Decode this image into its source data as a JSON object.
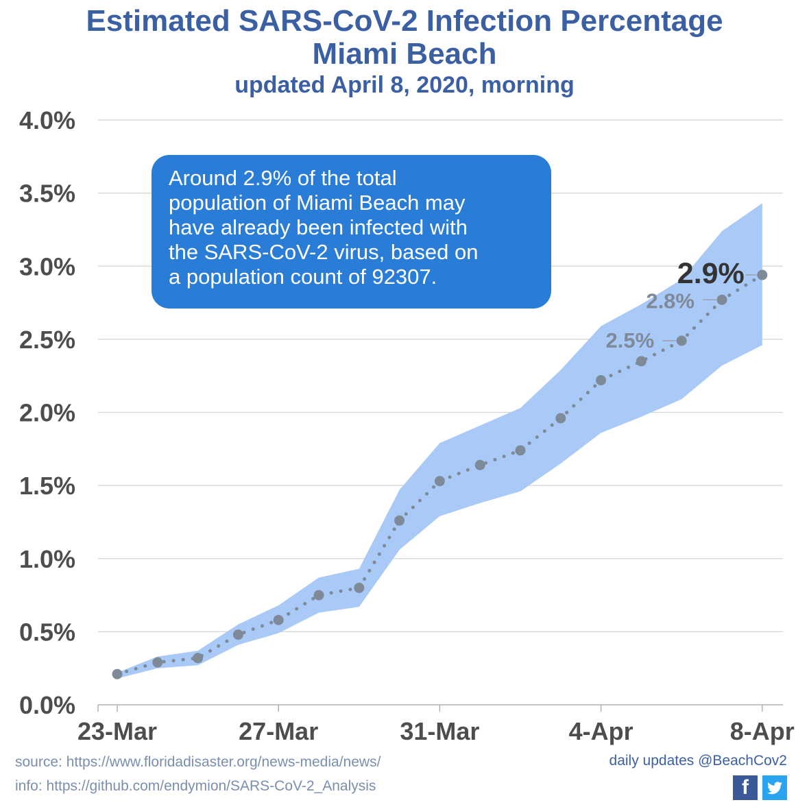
{
  "title_line1": "Estimated SARS-CoV-2 Infection Percentage",
  "title_line2": "Miami Beach",
  "subtitle": "updated April 8, 2020, morning",
  "callout_lines": [
    "Around 2.9% of the total",
    "population of Miami Beach may",
    "have already been infected with",
    "the SARS-CoV-2 virus, based on",
    "a population count of 92307."
  ],
  "source_text": "source: https://www.floridadisaster.org/news-media/news/",
  "info_text": "info: https://github.com/endymion/SARS-CoV-2_Analysis",
  "updates_text": "daily updates @BeachCov2",
  "icons": {
    "facebook": "facebook-icon",
    "twitter": "twitter-icon"
  },
  "colors": {
    "title": "#3b5fa3",
    "band": "#a9c9f7",
    "line": "#7f8a99",
    "callout": "#2a7dd6"
  },
  "chart_data": {
    "type": "line",
    "x": [
      "23-Mar",
      "24-Mar",
      "25-Mar",
      "26-Mar",
      "27-Mar",
      "28-Mar",
      "29-Mar",
      "30-Mar",
      "31-Mar",
      "1-Apr",
      "2-Apr",
      "3-Apr",
      "4-Apr",
      "5-Apr",
      "6-Apr",
      "7-Apr",
      "8-Apr"
    ],
    "x_ticks": [
      "23-Mar",
      "27-Mar",
      "31-Mar",
      "4-Apr",
      "8-Apr"
    ],
    "y_ticks": [
      "0.0%",
      "0.5%",
      "1.0%",
      "1.5%",
      "2.0%",
      "2.5%",
      "3.0%",
      "3.5%",
      "4.0%"
    ],
    "ylim": [
      0,
      4.0
    ],
    "grid": true,
    "series": [
      {
        "values": [
          0.21,
          0.29,
          0.32,
          0.48,
          0.58,
          0.75,
          0.8,
          1.26,
          1.53,
          1.64,
          1.74,
          1.96,
          2.22,
          2.35,
          2.49,
          2.77,
          2.94
        ]
      }
    ],
    "band_upper": [
      0.22,
      0.33,
      0.37,
      0.55,
      0.68,
      0.87,
      0.93,
      1.47,
      1.79,
      1.91,
      2.03,
      2.29,
      2.59,
      2.74,
      2.91,
      3.24,
      3.43
    ],
    "band_lower": [
      0.18,
      0.25,
      0.27,
      0.41,
      0.49,
      0.63,
      0.67,
      1.06,
      1.29,
      1.38,
      1.46,
      1.65,
      1.86,
      1.97,
      2.09,
      2.32,
      2.46
    ],
    "data_labels": [
      {
        "index": 14,
        "text": "2.5%"
      },
      {
        "index": 15,
        "text": "2.8%"
      },
      {
        "index": 16,
        "text": "2.9%"
      }
    ]
  }
}
